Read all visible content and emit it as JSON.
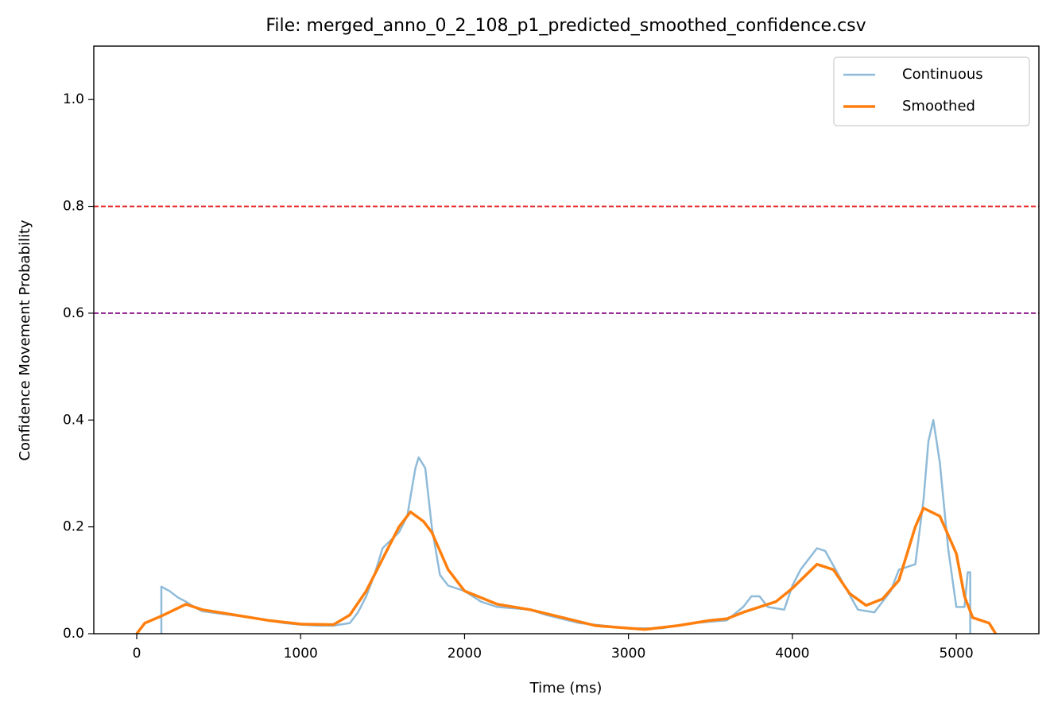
{
  "chart_data": {
    "type": "line",
    "title": "File: merged_anno_0_2_108_p1_predicted_smoothed_confidence.csv",
    "x_label": "Time (ms)",
    "y_label": "Confidence Movement Probability",
    "xlim": [
      -262,
      5504
    ],
    "ylim": [
      0,
      1.1
    ],
    "xticks": [
      0,
      1000,
      2000,
      3000,
      4000,
      5000
    ],
    "yticks": [
      {
        "value": 0,
        "label": "0.0"
      },
      0.2,
      0.4,
      0.6,
      0.8,
      {
        "value": 1,
        "label": "1.0"
      }
    ],
    "hlines": [
      {
        "value": 0.8,
        "color": "#e31a1c"
      },
      {
        "value": 0.6,
        "color": "#800080"
      }
    ],
    "legend": "upper right",
    "series": [
      {
        "name": "Continuous",
        "color": "#8fbbd9",
        "x": [
          150,
          150,
          200,
          250,
          300,
          350,
          400,
          500,
          700,
          900,
          1000,
          1100,
          1200,
          1300,
          1350,
          1400,
          1450,
          1500,
          1550,
          1600,
          1650,
          1700,
          1720,
          1760,
          1800,
          1850,
          1900,
          2000,
          2100,
          2200,
          2400,
          2500,
          2700,
          3000,
          3200,
          3400,
          3600,
          3700,
          3750,
          3800,
          3850,
          3950,
          4000,
          4050,
          4150,
          4200,
          4300,
          4400,
          4500,
          4600,
          4650,
          4750,
          4800,
          4830,
          4860,
          4900,
          4950,
          5000,
          5050,
          5070,
          5085,
          5085
        ],
        "values": [
          0,
          0.088,
          0.08,
          0.068,
          0.06,
          0.05,
          0.042,
          0.038,
          0.03,
          0.02,
          0.017,
          0.015,
          0.015,
          0.02,
          0.04,
          0.07,
          0.11,
          0.16,
          0.175,
          0.19,
          0.22,
          0.31,
          0.33,
          0.31,
          0.2,
          0.11,
          0.09,
          0.08,
          0.06,
          0.05,
          0.045,
          0.035,
          0.02,
          0.01,
          0.01,
          0.02,
          0.025,
          0.05,
          0.07,
          0.07,
          0.05,
          0.045,
          0.09,
          0.12,
          0.16,
          0.155,
          0.1,
          0.045,
          0.04,
          0.08,
          0.12,
          0.13,
          0.25,
          0.36,
          0.4,
          0.32,
          0.16,
          0.05,
          0.05,
          0.115,
          0.115,
          0
        ]
      },
      {
        "name": "Smoothed",
        "color": "#ff7f0e",
        "x": [
          0,
          50,
          150,
          300,
          400,
          600,
          800,
          1000,
          1200,
          1300,
          1400,
          1500,
          1600,
          1670,
          1750,
          1800,
          1900,
          2000,
          2200,
          2400,
          2600,
          2800,
          3100,
          3300,
          3500,
          3600,
          3700,
          3900,
          4000,
          4150,
          4250,
          4350,
          4450,
          4550,
          4650,
          4750,
          4800,
          4900,
          5000,
          5050,
          5100,
          5200,
          5240
        ],
        "values": [
          0,
          0.02,
          0.033,
          0.055,
          0.045,
          0.035,
          0.025,
          0.018,
          0.017,
          0.035,
          0.08,
          0.14,
          0.2,
          0.228,
          0.21,
          0.19,
          0.12,
          0.08,
          0.055,
          0.045,
          0.03,
          0.015,
          0.008,
          0.015,
          0.025,
          0.028,
          0.04,
          0.06,
          0.085,
          0.13,
          0.12,
          0.075,
          0.053,
          0.065,
          0.1,
          0.2,
          0.235,
          0.22,
          0.15,
          0.07,
          0.03,
          0.02,
          0
        ]
      }
    ]
  }
}
